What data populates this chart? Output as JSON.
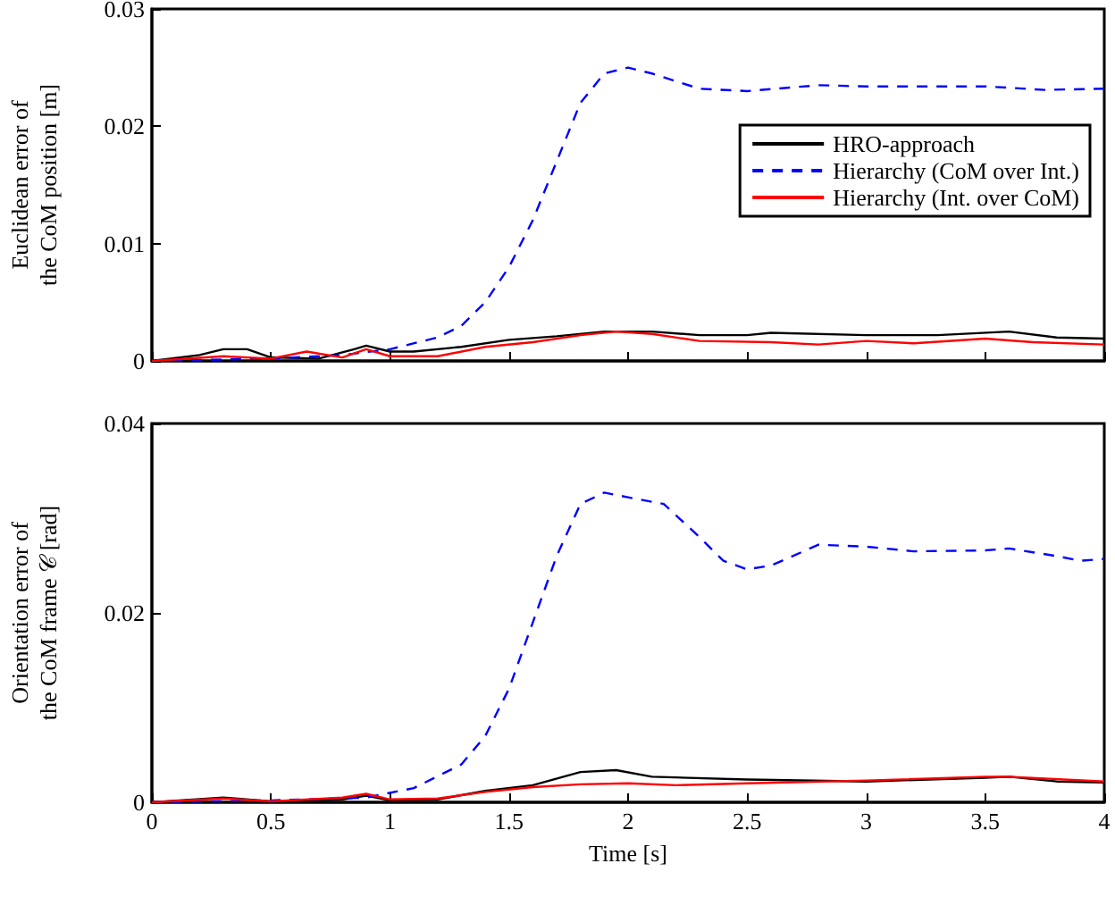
{
  "chart_data": [
    {
      "type": "line",
      "ylabel": "Euclidean error of\nthe CoM position [m]",
      "xlim": [
        0,
        4
      ],
      "xticks": [
        0,
        0.5,
        1,
        1.5,
        2,
        2.5,
        3,
        3.5,
        4
      ],
      "ylim": [
        0,
        0.03
      ],
      "yticks": [
        0,
        0.01,
        0.02,
        0.03
      ],
      "tick_labels": "y",
      "legend": "right",
      "grid": false,
      "marker": "none",
      "series": [
        {
          "name": "HRO-approach",
          "color": "#000000",
          "line_style": "solid",
          "x": [
            0,
            0.2,
            0.3,
            0.4,
            0.5,
            0.7,
            0.85,
            0.9,
            1.0,
            1.1,
            1.3,
            1.5,
            1.7,
            1.9,
            2.1,
            2.3,
            2.5,
            2.6,
            3,
            3.3,
            3.6,
            3.8,
            4
          ],
          "values": [
            0,
            0.0005,
            0.001,
            0.001,
            0.0003,
            0.0002,
            0.001,
            0.0013,
            0.0008,
            0.0008,
            0.0012,
            0.0018,
            0.0021,
            0.0025,
            0.0025,
            0.0022,
            0.0022,
            0.0024,
            0.0022,
            0.0022,
            0.0025,
            0.002,
            0.0019
          ]
        },
        {
          "name": "Hierarchy (CoM over Int.)",
          "color": "#0000ff",
          "line_style": "dashed",
          "x": [
            0,
            0.5,
            0.8,
            1.0,
            1.2,
            1.3,
            1.4,
            1.5,
            1.6,
            1.7,
            1.8,
            1.9,
            2.0,
            2.1,
            2.3,
            2.5,
            2.8,
            3.0,
            3.5,
            3.75,
            4
          ],
          "values": [
            0,
            0.0002,
            0.0005,
            0.001,
            0.002,
            0.003,
            0.005,
            0.008,
            0.012,
            0.017,
            0.022,
            0.0245,
            0.025,
            0.0245,
            0.0232,
            0.023,
            0.0235,
            0.0234,
            0.0234,
            0.0231,
            0.0232
          ]
        },
        {
          "name": "Hierarchy (Int. over CoM)",
          "color": "#ff0000",
          "line_style": "solid",
          "x": [
            0,
            0.3,
            0.5,
            0.65,
            0.8,
            0.9,
            1.0,
            1.2,
            1.4,
            1.6,
            1.8,
            1.95,
            2.1,
            2.3,
            2.6,
            2.8,
            3.0,
            3.2,
            3.5,
            3.7,
            4
          ],
          "values": [
            0,
            0.0004,
            0.0002,
            0.0008,
            0.0003,
            0.001,
            0.0004,
            0.0004,
            0.0012,
            0.0016,
            0.0022,
            0.0025,
            0.0023,
            0.0017,
            0.0016,
            0.0014,
            0.0017,
            0.0015,
            0.0019,
            0.0016,
            0.0014
          ]
        }
      ]
    },
    {
      "type": "line",
      "xlabel": "Time [s]",
      "ylabel": "Orientation error of\nthe CoM frame 𝒞 [rad]",
      "xlim": [
        0,
        4
      ],
      "xticks": [
        0,
        0.5,
        1,
        1.5,
        2,
        2.5,
        3,
        3.5,
        4
      ],
      "ylim": [
        0,
        0.04
      ],
      "yticks": [
        0,
        0.02,
        0.04
      ],
      "legend": false,
      "grid": false,
      "marker": "none",
      "series": [
        {
          "color": "#000000",
          "line_style": "solid",
          "x": [
            0,
            0.3,
            0.5,
            0.8,
            0.9,
            1.0,
            1.2,
            1.4,
            1.6,
            1.8,
            1.95,
            2.1,
            2.5,
            3,
            3.5,
            3.6,
            3.8,
            4
          ],
          "values": [
            0,
            0.0005,
            0.0001,
            0.0003,
            0.0007,
            0.0002,
            0.0003,
            0.0012,
            0.0018,
            0.0032,
            0.0034,
            0.0027,
            0.0024,
            0.0022,
            0.0026,
            0.0027,
            0.0022,
            0.0021
          ]
        },
        {
          "color": "#0000ff",
          "line_style": "dashed",
          "x": [
            0,
            0.5,
            0.9,
            1.1,
            1.3,
            1.4,
            1.5,
            1.6,
            1.7,
            1.8,
            1.9,
            2.0,
            2.15,
            2.3,
            2.4,
            2.5,
            2.6,
            2.8,
            3.0,
            3.2,
            3.5,
            3.6,
            3.8,
            3.9,
            4
          ],
          "values": [
            0,
            0.0002,
            0.0005,
            0.0015,
            0.004,
            0.007,
            0.012,
            0.019,
            0.026,
            0.0315,
            0.0327,
            0.0322,
            0.0315,
            0.028,
            0.0255,
            0.0246,
            0.025,
            0.0272,
            0.027,
            0.0265,
            0.0266,
            0.0268,
            0.026,
            0.0255,
            0.0257
          ]
        },
        {
          "color": "#ff0000",
          "line_style": "solid",
          "x": [
            0,
            0.3,
            0.5,
            0.8,
            0.9,
            1.0,
            1.2,
            1.4,
            1.6,
            1.8,
            2.0,
            2.2,
            2.5,
            3.0,
            3.5,
            3.6,
            4
          ],
          "values": [
            0,
            0.0004,
            0.0001,
            0.0005,
            0.0009,
            0.0003,
            0.0004,
            0.0011,
            0.0016,
            0.0019,
            0.002,
            0.0018,
            0.002,
            0.0023,
            0.0027,
            0.0027,
            0.0022
          ]
        }
      ]
    }
  ]
}
